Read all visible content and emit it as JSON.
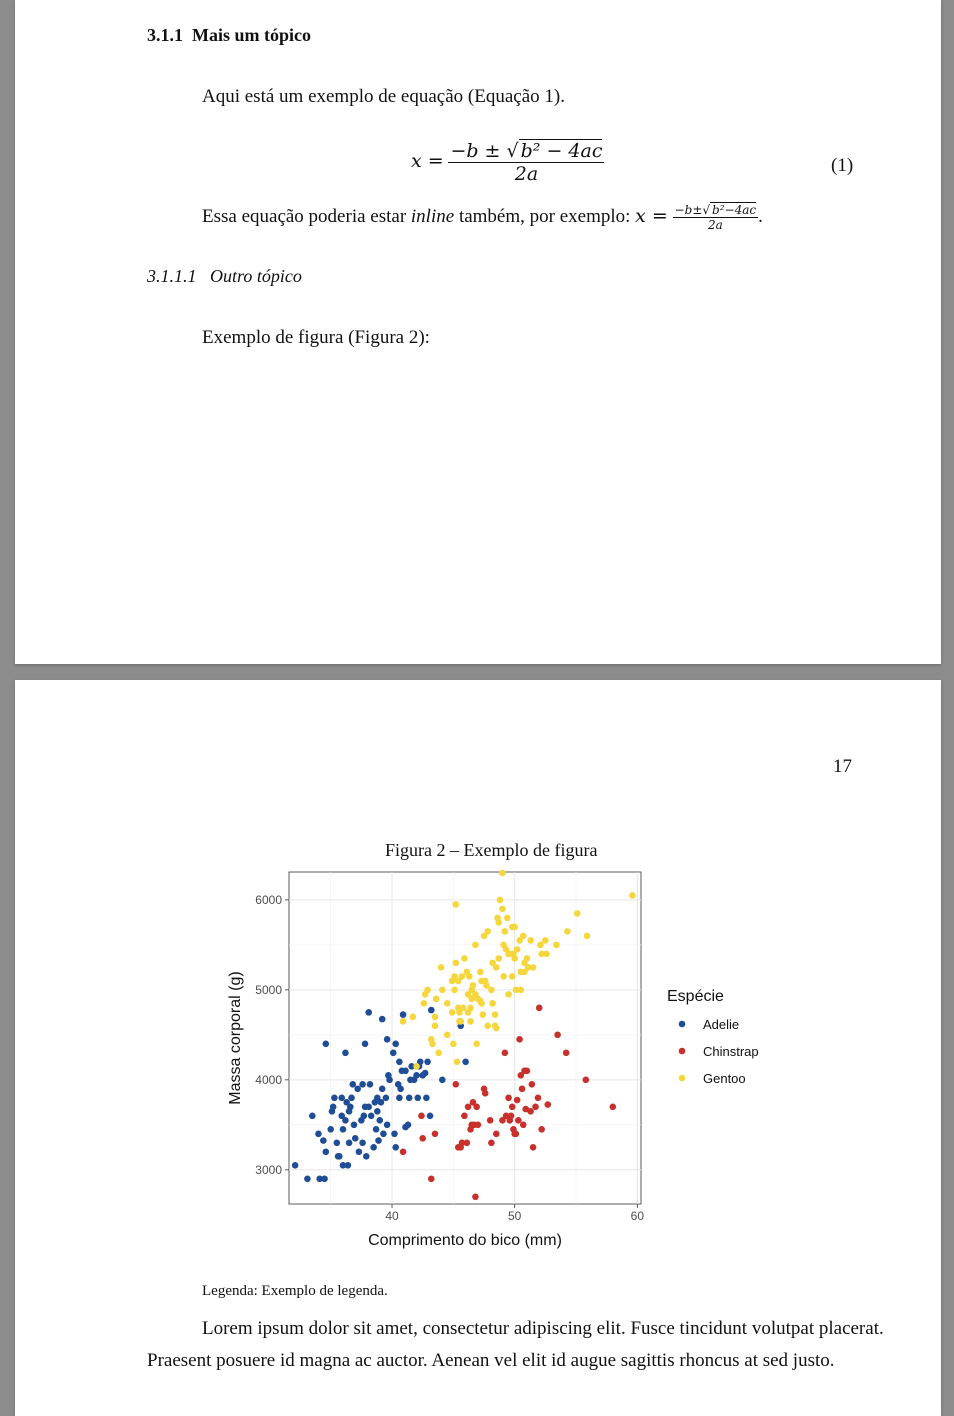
{
  "page1": {
    "section_number": "3.1.1",
    "section_title": "Mais um tópico",
    "intro": "Aqui está um exemplo de equação (Equação 1).",
    "equation": {
      "lhs": "x =",
      "numerator_prefix": "−b ± √",
      "radicand": "b² − 4ac",
      "denominator": "2a",
      "label": "(1)"
    },
    "inline_sentence": {
      "before": "Essa equação poderia estar ",
      "italic": "inline",
      "after": " também, por exemplo: ",
      "lhs": "x =",
      "numerator_prefix": "−b±√",
      "radicand": "b²−4ac",
      "denominator": "2a",
      "end": "."
    },
    "subsection_number": "3.1.1.1",
    "subsection_title": "Outro tópico",
    "figure_intro": "Exemplo de figura (Figura 2):"
  },
  "page2": {
    "page_number": "17",
    "figure_caption": "Figura 2  –  Exemplo de figura",
    "legenda": "Legenda: Exemplo de legenda.",
    "paragraph_line1": "Lorem ipsum dolor sit amet, consectetur adipiscing elit.  Fusce tincidunt volutpat placerat.",
    "paragraph_line2": "Praesent posuere id magna ac auctor.  Aenean vel elit id augue sagittis rhoncus at sed justo."
  },
  "chart_data": {
    "type": "scatter",
    "xlabel": "Comprimento do bico (mm)",
    "ylabel": "Massa corporal (g)",
    "xlim": [
      31.6,
      60.3
    ],
    "ylim": [
      2620,
      6310
    ],
    "xticks": [
      40,
      50,
      60
    ],
    "yticks": [
      3000,
      4000,
      5000,
      6000
    ],
    "grid": true,
    "legend_title": "Espécie",
    "legend_position": "right",
    "series": [
      {
        "name": "Adelie",
        "color": "#1f4e96",
        "points": [
          [
            32.1,
            3050
          ],
          [
            33.1,
            2900
          ],
          [
            33.5,
            3600
          ],
          [
            34.0,
            3400
          ],
          [
            34.1,
            2900
          ],
          [
            34.4,
            3325
          ],
          [
            34.5,
            2900
          ],
          [
            34.6,
            3200
          ],
          [
            34.6,
            4400
          ],
          [
            35.0,
            3450
          ],
          [
            35.1,
            3650
          ],
          [
            35.2,
            3700
          ],
          [
            35.3,
            3800
          ],
          [
            35.5,
            3300
          ],
          [
            35.6,
            3150
          ],
          [
            35.7,
            3150
          ],
          [
            35.9,
            3800
          ],
          [
            36.0,
            3050
          ],
          [
            36.0,
            3450
          ],
          [
            36.2,
            3550
          ],
          [
            36.3,
            3750
          ],
          [
            36.4,
            3050
          ],
          [
            36.5,
            3300
          ],
          [
            36.6,
            3700
          ],
          [
            36.7,
            3800
          ],
          [
            36.8,
            3950
          ],
          [
            36.9,
            3500
          ],
          [
            37.0,
            3350
          ],
          [
            37.2,
            3900
          ],
          [
            37.3,
            3200
          ],
          [
            37.5,
            3550
          ],
          [
            37.6,
            3300
          ],
          [
            37.7,
            3600
          ],
          [
            37.8,
            3700
          ],
          [
            37.8,
            4400
          ],
          [
            37.9,
            3150
          ],
          [
            38.1,
            3700
          ],
          [
            38.2,
            3950
          ],
          [
            38.3,
            3600
          ],
          [
            38.5,
            3250
          ],
          [
            38.6,
            3750
          ],
          [
            38.7,
            3450
          ],
          [
            38.8,
            3800
          ],
          [
            38.9,
            3325
          ],
          [
            39.0,
            3550
          ],
          [
            39.1,
            3750
          ],
          [
            39.2,
            4675
          ],
          [
            39.3,
            3400
          ],
          [
            39.5,
            3800
          ],
          [
            39.6,
            3500
          ],
          [
            39.7,
            4050
          ],
          [
            39.8,
            4000
          ],
          [
            40.1,
            4300
          ],
          [
            40.2,
            3400
          ],
          [
            40.3,
            3250
          ],
          [
            40.5,
            3950
          ],
          [
            40.6,
            4200
          ],
          [
            40.7,
            3900
          ],
          [
            40.8,
            4100
          ],
          [
            40.9,
            4725
          ],
          [
            41.1,
            4100
          ],
          [
            41.3,
            3500
          ],
          [
            41.4,
            3800
          ],
          [
            41.5,
            4000
          ],
          [
            41.6,
            4150
          ],
          [
            41.8,
            4000
          ],
          [
            42.0,
            4050
          ],
          [
            42.1,
            3800
          ],
          [
            42.2,
            4150
          ],
          [
            42.3,
            4200
          ],
          [
            42.5,
            4050
          ],
          [
            42.7,
            4075
          ],
          [
            42.8,
            3800
          ],
          [
            42.9,
            4200
          ],
          [
            43.1,
            3600
          ],
          [
            43.2,
            4775
          ],
          [
            44.1,
            4000
          ],
          [
            45.6,
            4600
          ],
          [
            46.0,
            4200
          ],
          [
            36.2,
            4300
          ],
          [
            38.1,
            4750
          ],
          [
            39.6,
            4450
          ],
          [
            40.6,
            3800
          ],
          [
            41.1,
            3475
          ],
          [
            37.6,
            3950
          ],
          [
            36.5,
            3650
          ],
          [
            35.9,
            3600
          ],
          [
            39.2,
            3900
          ],
          [
            40.3,
            4400
          ],
          [
            38.8,
            3650
          ]
        ]
      },
      {
        "name": "Chinstrap",
        "color": "#c8302c",
        "points": [
          [
            40.9,
            3200
          ],
          [
            42.4,
            3600
          ],
          [
            42.5,
            3350
          ],
          [
            43.2,
            2900
          ],
          [
            43.5,
            3400
          ],
          [
            45.2,
            3950
          ],
          [
            45.4,
            3250
          ],
          [
            45.6,
            3250
          ],
          [
            45.7,
            3300
          ],
          [
            45.9,
            3600
          ],
          [
            46.1,
            3300
          ],
          [
            46.2,
            3700
          ],
          [
            46.4,
            3450
          ],
          [
            46.6,
            3750
          ],
          [
            46.7,
            3500
          ],
          [
            46.8,
            2700
          ],
          [
            46.9,
            3700
          ],
          [
            47.0,
            3500
          ],
          [
            47.5,
            3900
          ],
          [
            47.6,
            3850
          ],
          [
            48.1,
            3300
          ],
          [
            48.5,
            3400
          ],
          [
            49.0,
            3550
          ],
          [
            49.2,
            4300
          ],
          [
            49.3,
            3600
          ],
          [
            49.5,
            3800
          ],
          [
            49.6,
            3550
          ],
          [
            49.7,
            3600
          ],
          [
            49.8,
            3700
          ],
          [
            50.0,
            3400
          ],
          [
            50.1,
            3400
          ],
          [
            50.2,
            3775
          ],
          [
            50.3,
            3550
          ],
          [
            50.4,
            4450
          ],
          [
            50.5,
            4050
          ],
          [
            50.6,
            3900
          ],
          [
            50.7,
            3500
          ],
          [
            50.8,
            4100
          ],
          [
            50.9,
            3675
          ],
          [
            51.0,
            4100
          ],
          [
            51.3,
            3650
          ],
          [
            51.4,
            3950
          ],
          [
            51.5,
            3250
          ],
          [
            51.7,
            3700
          ],
          [
            51.9,
            3800
          ],
          [
            52.0,
            4800
          ],
          [
            52.2,
            3450
          ],
          [
            52.7,
            3725
          ],
          [
            53.5,
            4500
          ],
          [
            54.2,
            4300
          ],
          [
            55.8,
            4000
          ],
          [
            58.0,
            3700
          ],
          [
            46.5,
            3500
          ],
          [
            48.0,
            3550
          ],
          [
            49.9,
            3450
          ]
        ]
      },
      {
        "name": "Gentoo",
        "color": "#f5d63d",
        "points": [
          [
            40.9,
            4650
          ],
          [
            41.7,
            4700
          ],
          [
            42.0,
            4150
          ],
          [
            42.6,
            4850
          ],
          [
            42.9,
            5000
          ],
          [
            43.2,
            4450
          ],
          [
            43.3,
            4400
          ],
          [
            43.5,
            4700
          ],
          [
            43.6,
            4900
          ],
          [
            44.0,
            5250
          ],
          [
            44.5,
            4850
          ],
          [
            44.9,
            5100
          ],
          [
            45.0,
            4400
          ],
          [
            45.1,
            5000
          ],
          [
            45.2,
            5300
          ],
          [
            45.3,
            4200
          ],
          [
            45.4,
            4800
          ],
          [
            45.5,
            4750
          ],
          [
            45.6,
            4650
          ],
          [
            45.7,
            5150
          ],
          [
            45.8,
            4800
          ],
          [
            46.1,
            5200
          ],
          [
            46.2,
            4750
          ],
          [
            46.3,
            5150
          ],
          [
            46.4,
            4800
          ],
          [
            46.5,
            4900
          ],
          [
            46.6,
            5050
          ],
          [
            46.8,
            4950
          ],
          [
            46.9,
            4400
          ],
          [
            47.2,
            5200
          ],
          [
            47.3,
            4850
          ],
          [
            47.4,
            4725
          ],
          [
            47.5,
            5600
          ],
          [
            47.6,
            5100
          ],
          [
            47.7,
            5050
          ],
          [
            47.8,
            5650
          ],
          [
            48.1,
            5000
          ],
          [
            48.2,
            4850
          ],
          [
            48.4,
            4725
          ],
          [
            48.5,
            5250
          ],
          [
            48.6,
            5800
          ],
          [
            48.7,
            5350
          ],
          [
            48.8,
            6000
          ],
          [
            49.0,
            6300
          ],
          [
            49.1,
            5500
          ],
          [
            49.2,
            5650
          ],
          [
            49.3,
            5450
          ],
          [
            49.4,
            5800
          ],
          [
            49.5,
            5400
          ],
          [
            49.6,
            5400
          ],
          [
            49.8,
            5700
          ],
          [
            49.9,
            5400
          ],
          [
            50.0,
            5700
          ],
          [
            50.1,
            5000
          ],
          [
            50.2,
            5450
          ],
          [
            50.4,
            5550
          ],
          [
            50.5,
            5000
          ],
          [
            50.7,
            5600
          ],
          [
            50.8,
            5300
          ],
          [
            51.1,
            5250
          ],
          [
            51.3,
            5550
          ],
          [
            51.5,
            5250
          ],
          [
            52.1,
            5500
          ],
          [
            52.2,
            5400
          ],
          [
            52.5,
            5550
          ],
          [
            53.4,
            5500
          ],
          [
            54.3,
            5650
          ],
          [
            55.1,
            5850
          ],
          [
            55.9,
            5600
          ],
          [
            59.6,
            6050
          ],
          [
            45.2,
            5950
          ],
          [
            46.5,
            5000
          ],
          [
            47.2,
            4875
          ],
          [
            48.4,
            4600
          ],
          [
            49.1,
            5150
          ],
          [
            50.0,
            5350
          ],
          [
            44.9,
            4750
          ],
          [
            45.5,
            4650
          ],
          [
            46.2,
            4950
          ],
          [
            47.8,
            4600
          ],
          [
            48.5,
            4575
          ],
          [
            49.5,
            4950
          ],
          [
            45.1,
            5150
          ],
          [
            44.5,
            4500
          ],
          [
            43.8,
            4300
          ],
          [
            42.7,
            4950
          ],
          [
            46.4,
            4650
          ],
          [
            47.3,
            5100
          ],
          [
            48.2,
            5300
          ],
          [
            49.8,
            5150
          ],
          [
            51.0,
            5350
          ],
          [
            50.5,
            5200
          ],
          [
            46.8,
            5500
          ],
          [
            45.9,
            5350
          ],
          [
            49.0,
            5900
          ],
          [
            48.7,
            5750
          ],
          [
            50.8,
            5200
          ],
          [
            52.6,
            5400
          ],
          [
            47.0,
            4900
          ],
          [
            45.4,
            5100
          ],
          [
            44.1,
            5000
          ],
          [
            43.5,
            4600
          ]
        ]
      }
    ]
  }
}
